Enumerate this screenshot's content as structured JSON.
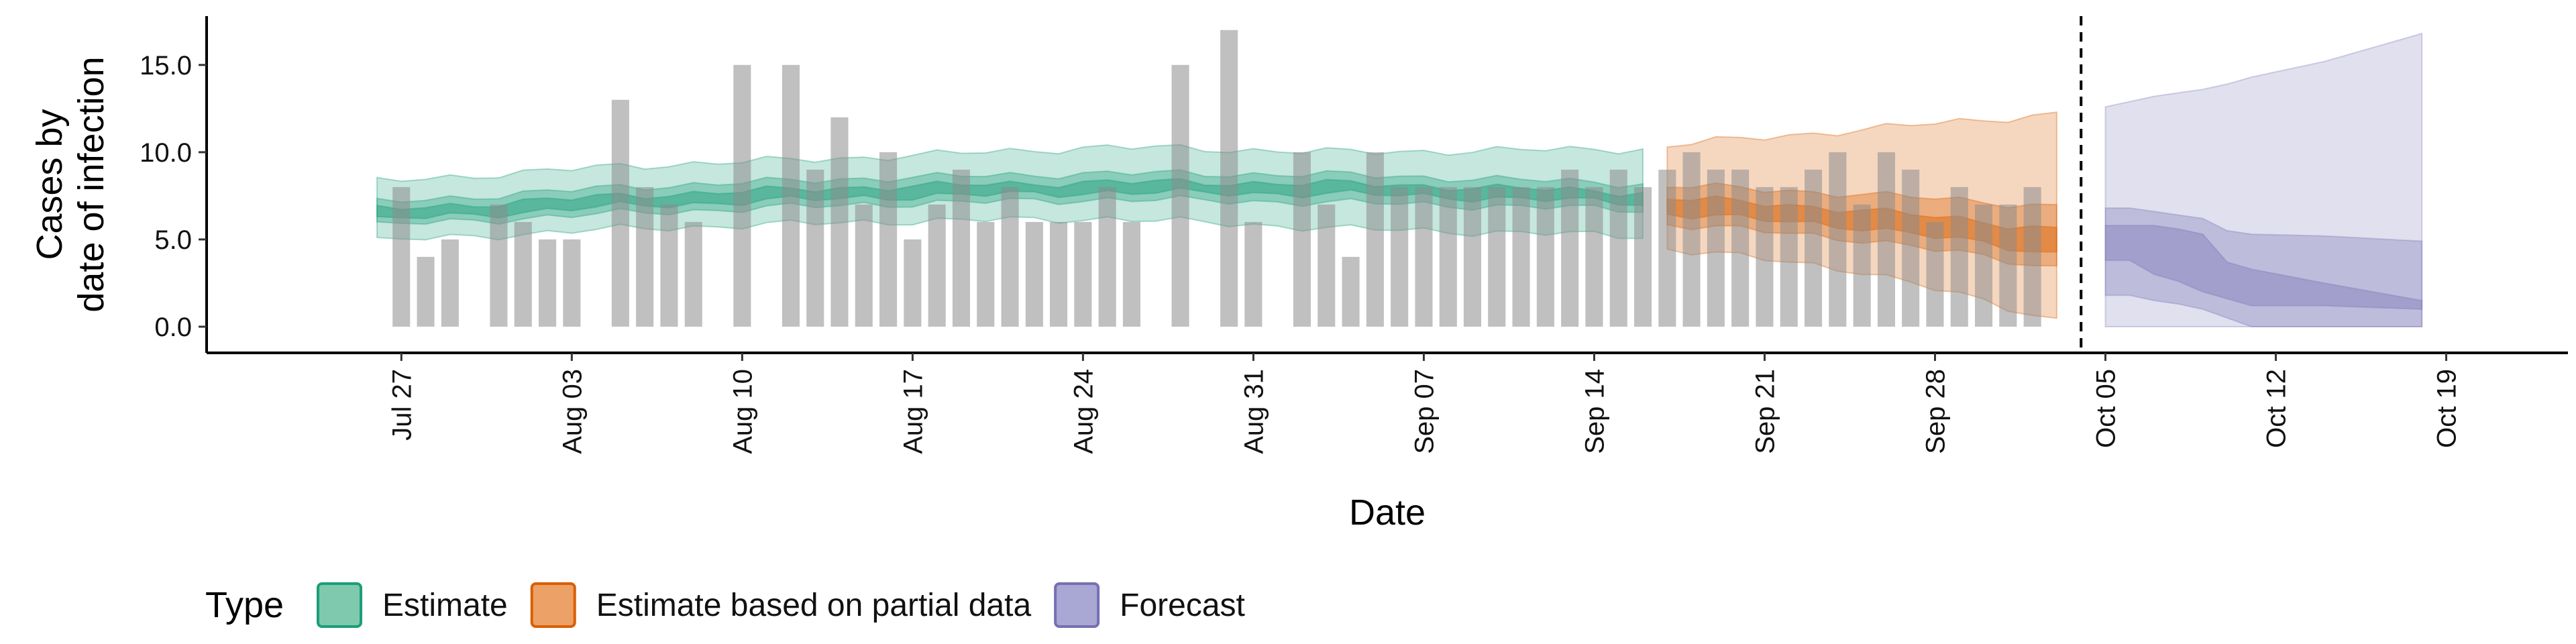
{
  "chart_data": {
    "type": "bar",
    "xlabel": "Date",
    "ylabel_lines": [
      "Cases by",
      "date of infection"
    ],
    "ylim": [
      -1.5,
      17.8
    ],
    "yticks": [
      0.0,
      5.0,
      10.0,
      15.0
    ],
    "ytick_labels": [
      "0.0",
      "5.0",
      "10.0",
      "15.0"
    ],
    "xlim": [
      "2020-07-19",
      "2020-10-24"
    ],
    "xticks": [
      "2020-07-27",
      "2020-08-03",
      "2020-08-10",
      "2020-08-17",
      "2020-08-24",
      "2020-08-31",
      "2020-09-07",
      "2020-09-14",
      "2020-09-21",
      "2020-09-28",
      "2020-10-05",
      "2020-10-12",
      "2020-10-19"
    ],
    "xtick_labels": [
      "Jul 27",
      "Aug 03",
      "Aug 10",
      "Aug 17",
      "Aug 24",
      "Aug 31",
      "Sep 07",
      "Sep 14",
      "Sep 21",
      "Sep 28",
      "Oct 05",
      "Oct 12",
      "Oct 19"
    ],
    "reference_line_date": "2020-10-04",
    "bars": {
      "start_date": "2020-07-27",
      "values": [
        8,
        4,
        5,
        0,
        7,
        6,
        5,
        5,
        0,
        13,
        8,
        7,
        6,
        0,
        15,
        0,
        15,
        9,
        12,
        7,
        10,
        5,
        7,
        9,
        6,
        8,
        6,
        6,
        6,
        8,
        6,
        0,
        15,
        0,
        17,
        6,
        0,
        10,
        7,
        4,
        10,
        8,
        8,
        8,
        8,
        8,
        8,
        8,
        9,
        8,
        9,
        8,
        9,
        10,
        9,
        9,
        8,
        8,
        9,
        10,
        7,
        10,
        9,
        6,
        8,
        7,
        7,
        8
      ]
    },
    "legend": {
      "title": "Type",
      "position": "bottom",
      "entries": [
        {
          "label": "Estimate",
          "fill": "#7fc9ae",
          "stroke": "#1b9e77"
        },
        {
          "label": "Estimate based on partial data",
          "fill": "#eca166",
          "stroke": "#d95f02"
        },
        {
          "label": "Forecast",
          "fill": "#a9a7d3",
          "stroke": "#7570b3"
        }
      ]
    },
    "series": [
      {
        "name": "Estimate",
        "color": "#1b9e77",
        "date_range": [
          "2020-07-26",
          "2020-09-16"
        ],
        "knots_days_from_start": [
          0,
          10,
          20,
          30,
          40,
          52
        ],
        "median": [
          6.4,
          7.2,
          7.7,
          8.0,
          7.9,
          7.4
        ],
        "lower90": [
          4.9,
          5.6,
          6.0,
          6.2,
          5.6,
          5.2
        ],
        "upper90": [
          8.3,
          9.2,
          9.7,
          10.3,
          10.0,
          10.2
        ],
        "lower50": [
          5.8,
          6.5,
          7.0,
          7.3,
          7.1,
          6.7
        ],
        "upper50": [
          7.1,
          8.0,
          8.5,
          8.8,
          8.7,
          8.2
        ],
        "lower20": [
          6.1,
          6.9,
          7.4,
          7.7,
          7.6,
          7.1
        ],
        "upper20": [
          6.7,
          7.5,
          8.0,
          8.3,
          8.2,
          7.7
        ]
      },
      {
        "name": "Estimate based on partial data",
        "color": "#d95f02",
        "date_range": [
          "2020-09-17",
          "2020-10-03"
        ],
        "knots_days_from_start": [
          0,
          8,
          16
        ],
        "median": [
          7.0,
          6.2,
          5.0
        ],
        "lower90": [
          4.5,
          3.2,
          0.4
        ],
        "upper90": [
          10.4,
          11.3,
          12.2
        ],
        "lower50": [
          5.9,
          5.0,
          3.4
        ],
        "upper50": [
          8.1,
          7.6,
          6.9
        ],
        "lower20": [
          6.5,
          5.7,
          4.2
        ],
        "upper20": [
          7.4,
          6.7,
          5.6
        ]
      },
      {
        "name": "Forecast",
        "color": "#7570b3",
        "steps": [
          {
            "date": "2020-10-05",
            "lower90": 0.0,
            "upper90": 12.6,
            "lower50": 1.8,
            "upper50": 6.8,
            "lower20": 3.8,
            "upper20": 5.8
          },
          {
            "date": "2020-10-06",
            "lower90": 0.0,
            "upper90": 12.9,
            "lower50": 1.8,
            "upper50": 6.8,
            "lower20": 3.8,
            "upper20": 5.8
          },
          {
            "date": "2020-10-07",
            "lower90": 0.0,
            "upper90": 13.2,
            "lower50": 1.5,
            "upper50": 6.6,
            "lower20": 3.0,
            "upper20": 5.8
          },
          {
            "date": "2020-10-08",
            "lower90": 0.0,
            "upper90": 13.4,
            "lower50": 1.3,
            "upper50": 6.4,
            "lower20": 2.6,
            "upper20": 5.6
          },
          {
            "date": "2020-10-09",
            "lower90": 0.0,
            "upper90": 13.6,
            "lower50": 1.0,
            "upper50": 6.2,
            "lower20": 2.0,
            "upper20": 5.3
          },
          {
            "date": "2020-10-10",
            "lower90": 0.0,
            "upper90": 13.9,
            "lower50": 0.5,
            "upper50": 5.5,
            "lower20": 1.6,
            "upper20": 3.7
          },
          {
            "date": "2020-10-11",
            "lower90": 0.0,
            "upper90": 14.3,
            "lower50": 0.0,
            "upper50": 5.3,
            "lower20": 1.2,
            "upper20": 3.3
          },
          {
            "date": "2020-10-14",
            "lower90": 0.0,
            "upper90": 15.2,
            "lower50": 0.0,
            "upper50": 5.2,
            "lower20": 1.2,
            "upper20": 2.5
          },
          {
            "date": "2020-10-18",
            "lower90": 0.0,
            "upper90": 16.8,
            "lower50": 0.0,
            "upper50": 4.9,
            "lower20": 1.0,
            "upper20": 1.5
          }
        ]
      }
    ]
  }
}
